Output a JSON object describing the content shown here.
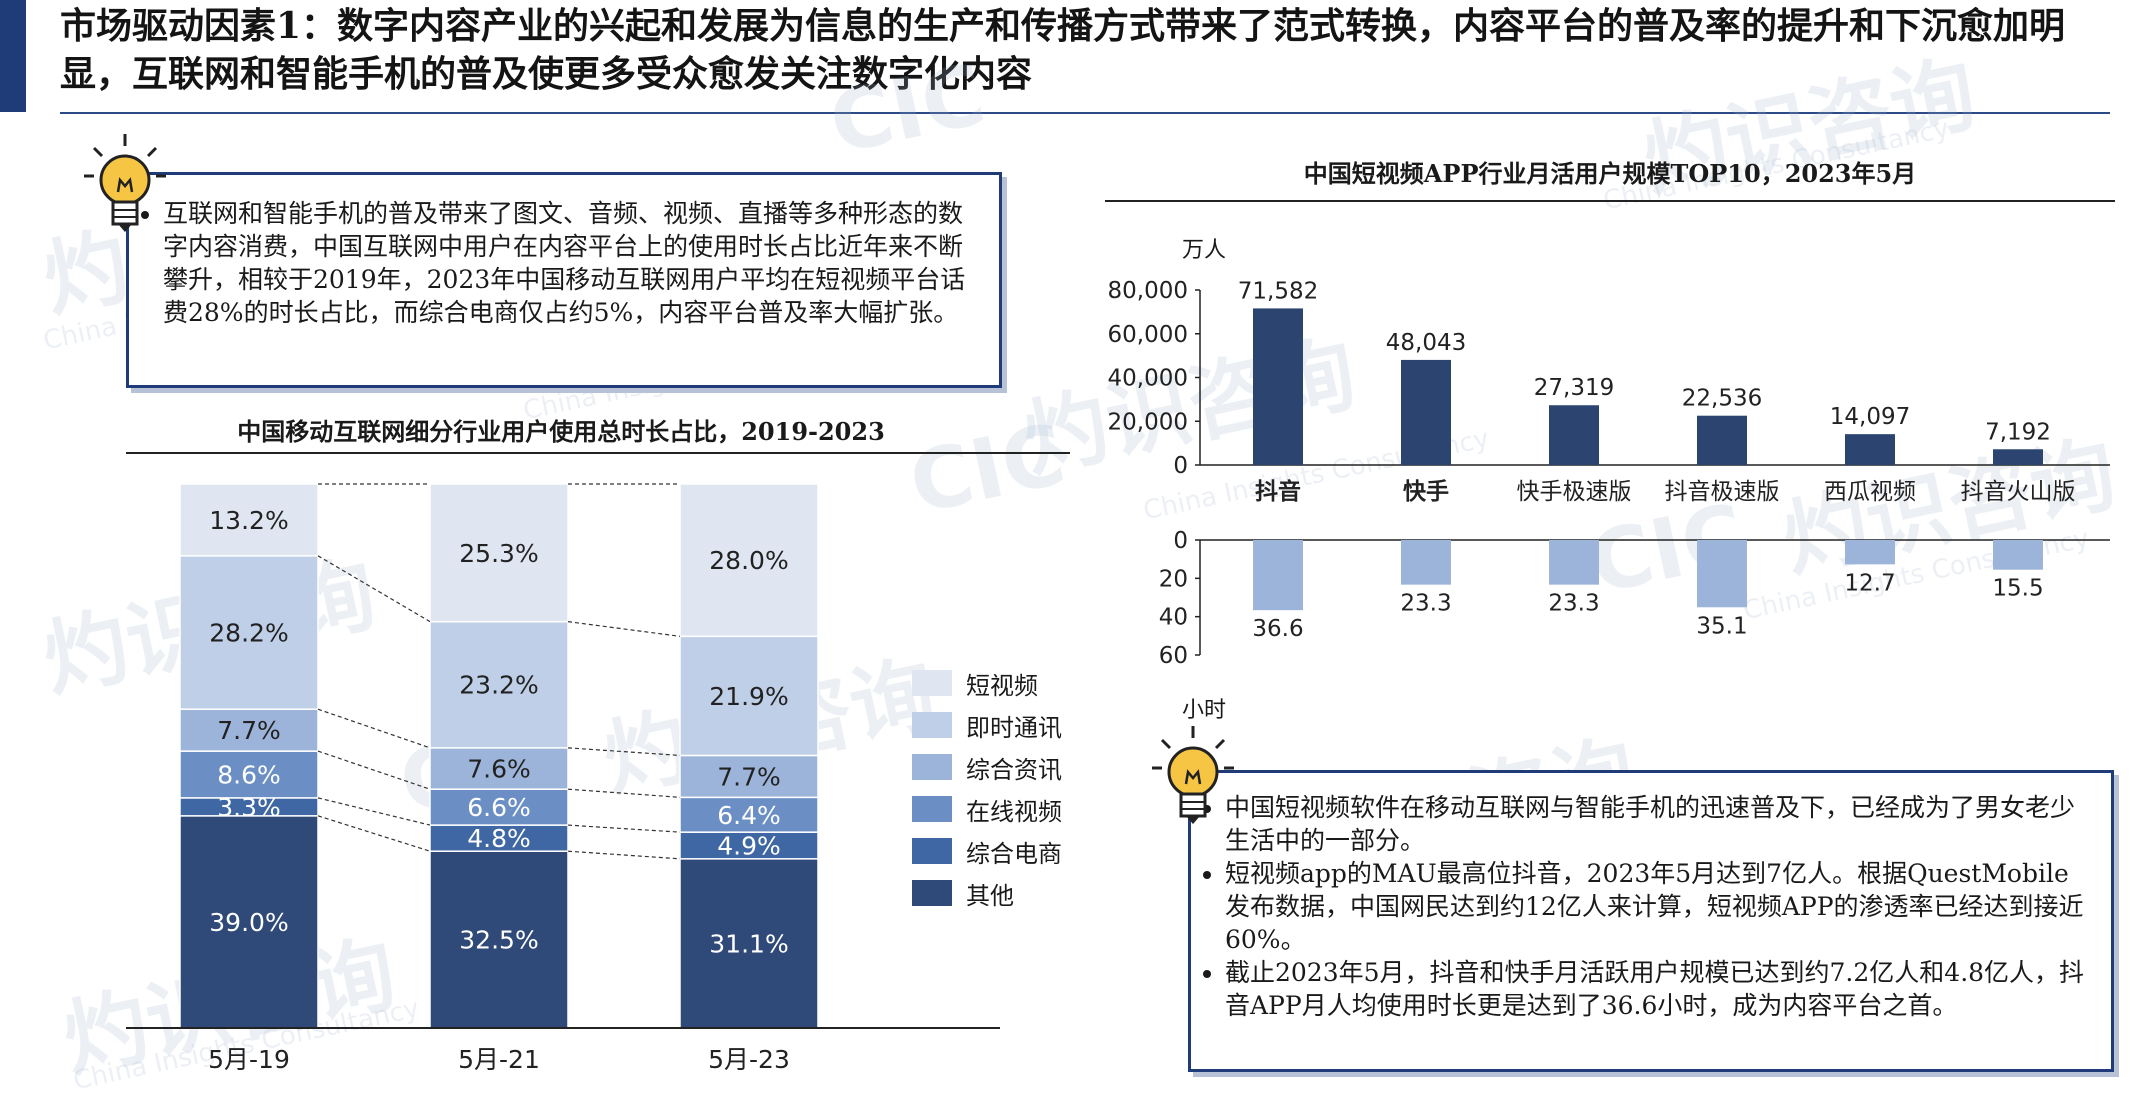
{
  "title": "市场驱动因素1：数字内容产业的兴起和发展为信息的生产和传播方式带来了范式转换，内容平台的普及率的提升和下沉愈加明显，互联网和智能手机的普及使更多受众愈发关注数字化内容",
  "watermark": {
    "cn": "灼识咨询",
    "en": "China Insights Consultancy",
    "logo": "CIC"
  },
  "icons": {
    "bulb": "lightbulb-icon"
  },
  "colors": {
    "accent": "#1f3b78",
    "other": "#2f4a78",
    "ecommerce": "#3f67a3",
    "video": "#6b8fc4",
    "news": "#9db4da",
    "im": "#bfcfe8",
    "short_video": "#dfe6f2"
  },
  "left_box": {
    "bullets": [
      "互联网和智能手机的普及带来了图文、音频、视频、直播等多种形态的数字内容消费，中国互联网中用户在内容平台上的使用时长占比近年来不断攀升，相较于2019年，2023年中国移动互联网用户平均在短视频平台话费28%的时长占比，而综合电商仅占约5%，内容平台普及率大幅扩张。"
    ]
  },
  "right_box": {
    "bullets": [
      "中国短视频软件在移动互联网与智能手机的迅速普及下，已经成为了男女老少生活中的一部分。",
      "短视频app的MAU最高位抖音，2023年5月达到7亿人。根据QuestMobile发布数据，中国网民达到约12亿人来计算，短视频APP的渗透率已经达到接近60%。",
      "截止2023年5月，抖音和快手月活跃用户规模已达到约7.2亿人和4.8亿人，抖音APP月人均使用时长更是达到了36.6小时，成为内容平台之首。"
    ]
  },
  "chart_data": [
    {
      "type": "bar",
      "stacked": true,
      "title": "中国移动互联网细分行业用户使用总时长占比，2019-2023",
      "categories": [
        "5月-19",
        "5月-21",
        "5月-23"
      ],
      "series": [
        {
          "name": "其他",
          "values": [
            39.0,
            32.5,
            31.1
          ],
          "labels": [
            "39.0%",
            "32.5%",
            "31.1%"
          ]
        },
        {
          "name": "综合电商",
          "values": [
            3.3,
            4.8,
            4.9
          ],
          "labels": [
            "3.3%",
            "4.8%",
            "4.9%"
          ]
        },
        {
          "name": "在线视频",
          "values": [
            8.6,
            6.6,
            6.4
          ],
          "labels": [
            "8.6%",
            "6.6%",
            "6.4%"
          ]
        },
        {
          "name": "综合资讯",
          "values": [
            7.7,
            7.6,
            7.7
          ],
          "labels": [
            "7.7%",
            "7.6%",
            "7.7%"
          ]
        },
        {
          "name": "即时通讯",
          "values": [
            28.2,
            23.2,
            21.9
          ],
          "labels": [
            "28.2%",
            "23.2%",
            "21.9%"
          ]
        },
        {
          "name": "短视频",
          "values": [
            13.2,
            25.3,
            28.0
          ],
          "labels": [
            "13.2%",
            "25.3%",
            "28.0%"
          ]
        }
      ],
      "legend_order": [
        "短视频",
        "即时通讯",
        "综合资讯",
        "在线视频",
        "综合电商",
        "其他"
      ],
      "legend_position": "right"
    },
    {
      "type": "bar",
      "title": "中国短视频APP行业月活用户规模TOP10，2023年5月",
      "categories": [
        "抖音",
        "快手",
        "快手极速版",
        "抖音极速版",
        "西瓜视频",
        "抖音火山版"
      ],
      "ylabel": "万人",
      "ylim": [
        0,
        80000
      ],
      "yticks": [
        "0",
        "20,000",
        "40,000",
        "60,000",
        "80,000"
      ],
      "values": [
        71582,
        48043,
        27319,
        22536,
        14097,
        7192
      ],
      "labels": [
        "71,582",
        "48,043",
        "27,319",
        "22,536",
        "14,097",
        "7,192"
      ]
    },
    {
      "type": "bar",
      "orientation": "downward",
      "categories": [
        "抖音",
        "快手",
        "快手极速版",
        "抖音极速版",
        "西瓜视频",
        "抖音火山版"
      ],
      "ylabel": "小时",
      "ylim": [
        0,
        60
      ],
      "yticks": [
        "0",
        "20",
        "40",
        "60"
      ],
      "values": [
        36.6,
        23.3,
        23.3,
        35.1,
        12.7,
        15.5
      ],
      "labels": [
        "36.6",
        "23.3",
        "23.3",
        "35.1",
        "12.7",
        "15.5"
      ]
    }
  ]
}
